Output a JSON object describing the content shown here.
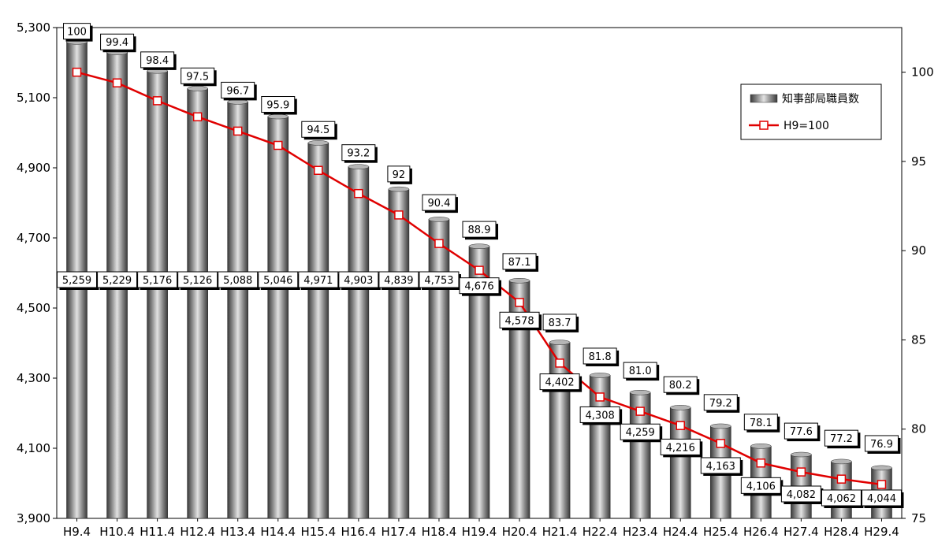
{
  "chart_data": {
    "type": "bar",
    "categories": [
      "H9.4",
      "H10.4",
      "H11.4",
      "H12.4",
      "H13.4",
      "H14.4",
      "H15.4",
      "H16.4",
      "H17.4",
      "H18.4",
      "H19.4",
      "H20.4",
      "H21.4",
      "H22.4",
      "H23.4",
      "H24.4",
      "H25.4",
      "H26.4",
      "H27.4",
      "H28.4",
      "H29.4"
    ],
    "series": [
      {
        "name": "知事部局職員数",
        "kind": "bar",
        "axis": "left",
        "values": [
          5259,
          5229,
          5176,
          5126,
          5088,
          5046,
          4971,
          4903,
          4839,
          4753,
          4676,
          4578,
          4402,
          4308,
          4259,
          4216,
          4163,
          4106,
          4082,
          4062,
          4044
        ],
        "labels": [
          "5,259",
          "5,229",
          "5,176",
          "5,126",
          "5,088",
          "5,046",
          "4,971",
          "4,903",
          "4,839",
          "4,753",
          "4,676",
          "4,578",
          "4,402",
          "4,308",
          "4,259",
          "4,216",
          "4,163",
          "4,106",
          "4,082",
          "4,062",
          "4,044"
        ]
      },
      {
        "name": "H9=100",
        "kind": "line",
        "axis": "right",
        "values": [
          100,
          99.4,
          98.4,
          97.5,
          96.7,
          95.9,
          94.5,
          93.2,
          92,
          90.4,
          88.9,
          87.1,
          83.7,
          81.8,
          81.0,
          80.2,
          79.2,
          78.1,
          77.6,
          77.2,
          76.9
        ],
        "labels": [
          "100",
          "99.4",
          "98.4",
          "97.5",
          "96.7",
          "95.9",
          "94.5",
          "93.2",
          "92",
          "90.4",
          "88.9",
          "87.1",
          "83.7",
          "81.8",
          "81.0",
          "80.2",
          "79.2",
          "78.1",
          "77.6",
          "77.2",
          "76.9"
        ]
      }
    ],
    "y_left": {
      "min": 3900,
      "max": 5300,
      "ticks": [
        3900,
        4100,
        4300,
        4500,
        4700,
        4900,
        5100,
        5300
      ],
      "tick_labels": [
        "3,900",
        "4,100",
        "4,300",
        "4,500",
        "4,700",
        "4,900",
        "5,100",
        "5,300"
      ]
    },
    "y_right": {
      "min": 75,
      "max": 102.5,
      "ticks": [
        75,
        80,
        85,
        90,
        95,
        100
      ],
      "tick_labels": [
        "75",
        "80",
        "85",
        "90",
        "95",
        "100"
      ]
    },
    "grid": false,
    "legend": "top-right",
    "colors": {
      "bar": "#8a8a8a",
      "line": "#e00000",
      "marker_fill": "#ffffff"
    }
  }
}
